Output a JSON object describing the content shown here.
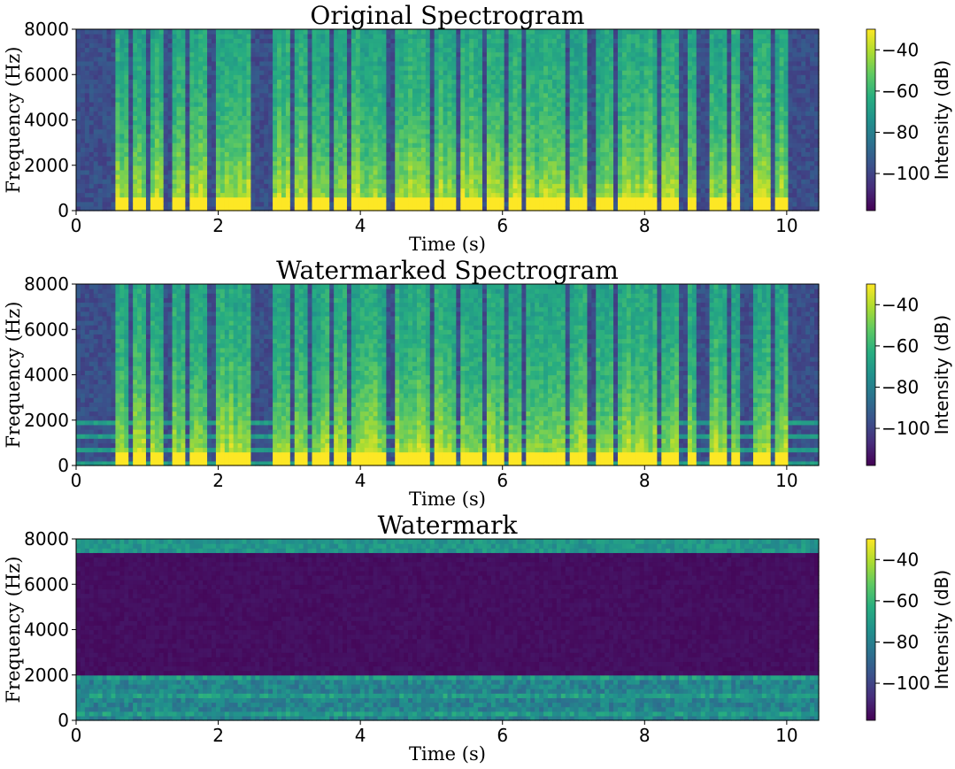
{
  "chart_data": [
    {
      "type": "heatmap",
      "title": "Original Spectrogram",
      "xlabel": "Time (s)",
      "ylabel": "Frequency (Hz)",
      "xlim": [
        0,
        10.45
      ],
      "ylim": [
        0,
        8000
      ],
      "xticks": [
        0,
        2,
        4,
        6,
        8,
        10
      ],
      "yticks": [
        0,
        2000,
        4000,
        6000,
        8000
      ],
      "colormap": "viridis",
      "colorbar": {
        "label": "Intensity (dB)",
        "range": [
          -118,
          -30
        ],
        "ticks": [
          -40,
          -60,
          -80,
          -100
        ]
      },
      "speech_segments_s": [
        [
          0.55,
          0.75
        ],
        [
          0.8,
          1.0
        ],
        [
          1.05,
          1.25
        ],
        [
          1.35,
          1.55
        ],
        [
          1.6,
          1.85
        ],
        [
          1.95,
          2.45
        ],
        [
          2.75,
          3.0
        ],
        [
          3.05,
          3.25
        ],
        [
          3.3,
          3.55
        ],
        [
          3.6,
          3.8
        ],
        [
          3.9,
          4.35
        ],
        [
          4.5,
          4.95
        ],
        [
          5.05,
          5.35
        ],
        [
          5.4,
          5.7
        ],
        [
          5.8,
          6.0
        ],
        [
          6.1,
          6.3
        ],
        [
          6.35,
          6.55
        ],
        [
          6.6,
          6.9
        ],
        [
          6.95,
          7.2
        ],
        [
          7.3,
          7.55
        ],
        [
          7.65,
          7.9
        ],
        [
          7.95,
          8.15
        ],
        [
          8.25,
          8.5
        ],
        [
          8.6,
          8.7
        ],
        [
          8.9,
          9.15
        ],
        [
          9.2,
          9.35
        ],
        [
          9.55,
          9.75
        ],
        [
          9.85,
          10.05
        ]
      ],
      "notes": "speech energy concentrated below 2000 Hz; silence before 0.55 s and around 2.5 s"
    },
    {
      "type": "heatmap",
      "title": "Watermarked Spectrogram",
      "xlabel": "Time (s)",
      "ylabel": "Frequency (Hz)",
      "xlim": [
        0,
        10.45
      ],
      "ylim": [
        0,
        8000
      ],
      "xticks": [
        0,
        2,
        4,
        6,
        8,
        10
      ],
      "yticks": [
        0,
        2000,
        4000,
        6000,
        8000
      ],
      "colormap": "viridis",
      "colorbar": {
        "label": "Intensity (dB)",
        "range": [
          -118,
          -30
        ],
        "ticks": [
          -40,
          -60,
          -80,
          -100
        ]
      },
      "speech_segments_s": [
        [
          0.55,
          0.75
        ],
        [
          0.8,
          1.0
        ],
        [
          1.05,
          1.25
        ],
        [
          1.35,
          1.55
        ],
        [
          1.6,
          1.85
        ],
        [
          1.95,
          2.45
        ],
        [
          2.75,
          3.0
        ],
        [
          3.05,
          3.25
        ],
        [
          3.3,
          3.55
        ],
        [
          3.6,
          3.8
        ],
        [
          3.9,
          4.35
        ],
        [
          4.5,
          4.95
        ],
        [
          5.05,
          5.35
        ],
        [
          5.4,
          5.7
        ],
        [
          5.8,
          6.0
        ],
        [
          6.1,
          6.3
        ],
        [
          6.35,
          6.55
        ],
        [
          6.6,
          6.9
        ],
        [
          6.95,
          7.2
        ],
        [
          7.3,
          7.55
        ],
        [
          7.65,
          7.9
        ],
        [
          7.95,
          8.15
        ],
        [
          8.25,
          8.5
        ],
        [
          8.6,
          8.7
        ],
        [
          8.9,
          9.15
        ],
        [
          9.2,
          9.35
        ],
        [
          9.55,
          9.75
        ],
        [
          9.85,
          10.05
        ]
      ],
      "notes": "same as original plus faint horizontal bands below 2000 Hz"
    },
    {
      "type": "heatmap",
      "title": "Watermark",
      "xlabel": "Time (s)",
      "ylabel": "Frequency (Hz)",
      "xlim": [
        0,
        10.45
      ],
      "ylim": [
        0,
        8000
      ],
      "xticks": [
        0,
        2,
        4,
        6,
        8,
        10
      ],
      "yticks": [
        0,
        2000,
        4000,
        6000,
        8000
      ],
      "colormap": "viridis",
      "colorbar": {
        "label": "Intensity (dB)",
        "range": [
          -118,
          -30
        ],
        "ticks": [
          -40,
          -60,
          -80,
          -100
        ]
      },
      "band_low_hz": [
        0,
        2000
      ],
      "band_high_hz": [
        7500,
        8000
      ],
      "notes": "energy mainly below 2000 Hz and a thin band near 7500-8000 Hz; rest near the colormap minimum"
    }
  ]
}
